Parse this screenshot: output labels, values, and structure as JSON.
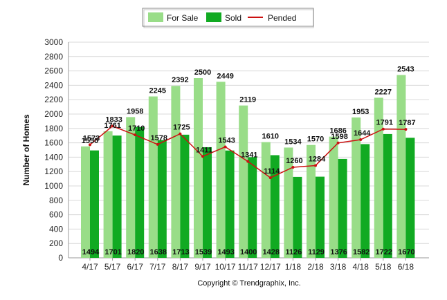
{
  "chart_data": {
    "type": "bar",
    "categories": [
      "4/17",
      "5/17",
      "6/17",
      "7/17",
      "8/17",
      "9/17",
      "10/17",
      "11/17",
      "12/17",
      "1/18",
      "2/18",
      "3/18",
      "4/18",
      "5/18",
      "6/18"
    ],
    "series": [
      {
        "name": "For Sale",
        "kind": "bar",
        "color": "#99dd88",
        "values": [
          1550,
          1761,
          1958,
          2245,
          2392,
          2500,
          2449,
          2119,
          1610,
          1534,
          1570,
          1686,
          1953,
          2227,
          2543
        ]
      },
      {
        "name": "Sold",
        "kind": "bar",
        "color": "#11aa22",
        "values": [
          1494,
          1701,
          1820,
          1638,
          1713,
          1539,
          1493,
          1400,
          1428,
          1126,
          1129,
          1376,
          1582,
          1722,
          1670
        ]
      },
      {
        "name": "Pended",
        "kind": "line",
        "color": "#cc1111",
        "values": [
          1573,
          1833,
          1710,
          1578,
          1725,
          1411,
          1543,
          1341,
          1114,
          1260,
          1284,
          1598,
          1644,
          1791,
          1787
        ]
      }
    ],
    "for_sale_labels": [
      "1550",
      "1761",
      "1958",
      "2245",
      "2392",
      "2500",
      "2449",
      "2119",
      "1610",
      "1534",
      "1570",
      "1686",
      "1953",
      "2227",
      "2543"
    ],
    "sold_labels": [
      "1494",
      "1701",
      "1820",
      "1638",
      "1713",
      "1539",
      "1493",
      "1400",
      "1428",
      "1126",
      "1129",
      "1376",
      "1582",
      "1722",
      "1670"
    ],
    "pended_labels": [
      "1573",
      "1833",
      "1710",
      "1578",
      "1725",
      "1411",
      "1543",
      "1341",
      "1114",
      "1260",
      "1284",
      "1598",
      "1644",
      "1791",
      "1787"
    ],
    "ylabel": "Number of Homes",
    "xlabel": "",
    "ylim": [
      0,
      3000
    ],
    "yticks": [
      "0",
      "200",
      "400",
      "600",
      "800",
      "1000",
      "1200",
      "1400",
      "1600",
      "1800",
      "2000",
      "2200",
      "2400",
      "2600",
      "2800",
      "3000"
    ],
    "grid": true,
    "legend_position": "top-center"
  },
  "legend": {
    "for_sale": "For Sale",
    "sold": "Sold",
    "pended": "Pended"
  },
  "axis": {
    "ylabel": "Number of Homes"
  },
  "footer": {
    "copyright": "Copyright © Trendgraphix, Inc."
  }
}
